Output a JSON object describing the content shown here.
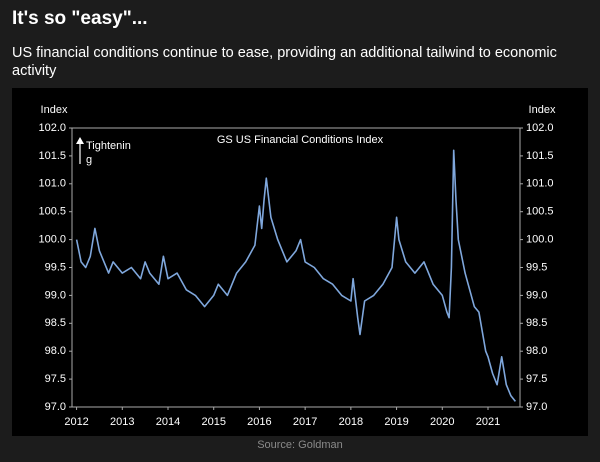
{
  "header": {
    "title": "It's so \"easy\"...",
    "subtitle": "US financial conditions continue to ease, providing an additional tailwind to economic activity"
  },
  "chart_data": {
    "type": "line",
    "title": "GS US Financial Conditions Index",
    "y_label": "Index",
    "y2_label": "Index",
    "annotation": [
      "Tightenin",
      "g"
    ],
    "x": [
      2012.0,
      2012.1,
      2012.2,
      2012.3,
      2012.4,
      2012.5,
      2012.6,
      2012.7,
      2012.8,
      2012.9,
      2013.0,
      2013.2,
      2013.4,
      2013.5,
      2013.6,
      2013.8,
      2013.9,
      2014.0,
      2014.2,
      2014.4,
      2014.6,
      2014.8,
      2015.0,
      2015.1,
      2015.3,
      2015.5,
      2015.7,
      2015.9,
      2016.0,
      2016.05,
      2016.1,
      2016.15,
      2016.25,
      2016.4,
      2016.6,
      2016.8,
      2016.9,
      2017.0,
      2017.2,
      2017.4,
      2017.6,
      2017.8,
      2018.0,
      2018.05,
      2018.15,
      2018.2,
      2018.3,
      2018.5,
      2018.7,
      2018.9,
      2019.0,
      2019.05,
      2019.2,
      2019.4,
      2019.6,
      2019.8,
      2020.0,
      2020.1,
      2020.15,
      2020.2,
      2020.25,
      2020.3,
      2020.35,
      2020.5,
      2020.6,
      2020.7,
      2020.8,
      2020.95,
      2021.0,
      2021.1,
      2021.2,
      2021.3,
      2021.4,
      2021.5,
      2021.6
    ],
    "series": [
      {
        "name": "GS US Financial Conditions Index",
        "color": "#7fa7dc",
        "values": [
          100.0,
          99.6,
          99.5,
          99.7,
          100.2,
          99.8,
          99.6,
          99.4,
          99.6,
          99.5,
          99.4,
          99.5,
          99.3,
          99.6,
          99.4,
          99.2,
          99.7,
          99.3,
          99.4,
          99.1,
          99.0,
          98.8,
          99.0,
          99.2,
          99.0,
          99.4,
          99.6,
          99.9,
          100.6,
          100.2,
          100.7,
          101.1,
          100.4,
          100.0,
          99.6,
          99.8,
          100.0,
          99.6,
          99.5,
          99.3,
          99.2,
          99.0,
          98.9,
          99.3,
          98.6,
          98.3,
          98.9,
          99.0,
          99.2,
          99.5,
          100.4,
          100.0,
          99.6,
          99.4,
          99.6,
          99.2,
          99.0,
          98.7,
          98.6,
          99.5,
          101.6,
          100.7,
          100.0,
          99.4,
          99.1,
          98.8,
          98.7,
          98.0,
          97.9,
          97.6,
          97.4,
          97.9,
          97.4,
          97.2,
          97.1
        ]
      }
    ],
    "xlim": [
      2011.9,
      2021.7
    ],
    "xticks": [
      2012,
      2013,
      2014,
      2015,
      2016,
      2017,
      2018,
      2019,
      2020,
      2021
    ],
    "ylim": [
      97,
      102
    ],
    "yticks": [
      {
        "value": 97,
        "label": "97.0"
      },
      {
        "value": 97.5,
        "label": "97.5"
      },
      {
        "value": 98,
        "label": "98.0"
      },
      {
        "value": 98.5,
        "label": "98.5"
      },
      {
        "value": 99,
        "label": "99.0"
      },
      {
        "value": 99.5,
        "label": "99.5"
      },
      {
        "value": 100,
        "label": "100.0"
      },
      {
        "value": 100.5,
        "label": "100.5"
      },
      {
        "value": 101,
        "label": "101.0"
      },
      {
        "value": 101.5,
        "label": "101.5"
      },
      {
        "value": 102,
        "label": "102.0"
      }
    ],
    "y2lim": [
      97,
      102
    ],
    "y2ticks": [
      {
        "value": 97,
        "label": "97.0"
      },
      {
        "value": 97.5,
        "label": "97.5"
      },
      {
        "value": 98,
        "label": "98.0"
      },
      {
        "value": 98.5,
        "label": "98.5"
      },
      {
        "value": 99,
        "label": "99.0"
      },
      {
        "value": 99.5,
        "label": "99.5"
      },
      {
        "value": 100,
        "label": "100.0"
      },
      {
        "value": 100.5,
        "label": "100.5"
      },
      {
        "value": 101,
        "label": "101.0"
      },
      {
        "value": 101.5,
        "label": "101.5"
      },
      {
        "value": 102,
        "label": "102.0"
      }
    ]
  },
  "source": "Source: Goldman"
}
